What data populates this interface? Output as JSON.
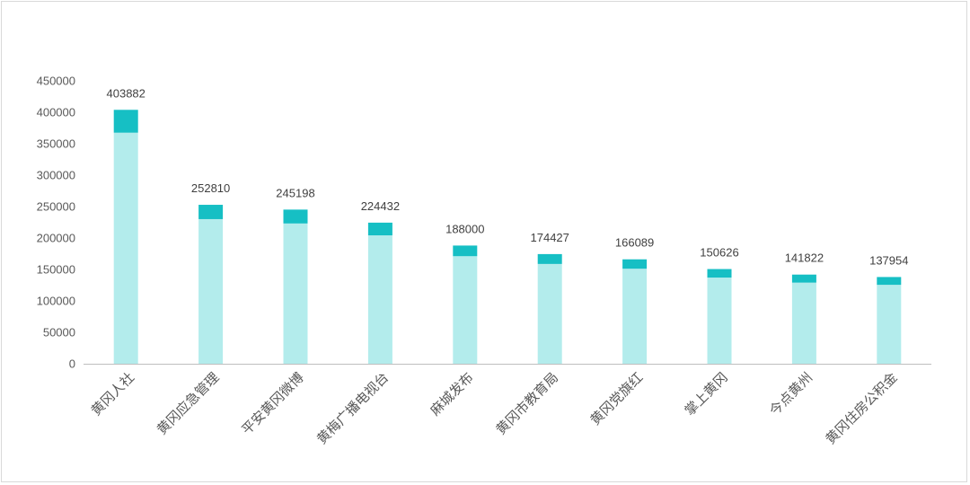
{
  "chart_data": {
    "type": "bar",
    "categories": [
      "黄冈人社",
      "黄冈应急管理",
      "平安黄冈微博",
      "黄梅广播电视台",
      "麻城发布",
      "黄冈市教育局",
      "黄冈党旗红",
      "掌上黄冈",
      "今点黄州",
      "黄冈住房公积金"
    ],
    "values": [
      403882,
      252810,
      245198,
      224432,
      188000,
      174427,
      166089,
      150626,
      141822,
      137954
    ],
    "ylim": [
      0,
      450000
    ],
    "yticks": [
      0,
      50000,
      100000,
      150000,
      200000,
      250000,
      300000,
      350000,
      400000,
      450000
    ],
    "grid": false,
    "legend": "none",
    "colors": {
      "bar_base": "#b3ecec",
      "bar_top": "#16bfc4",
      "axis": "#bfbfbf"
    },
    "top_segment_fraction": 0.09
  }
}
